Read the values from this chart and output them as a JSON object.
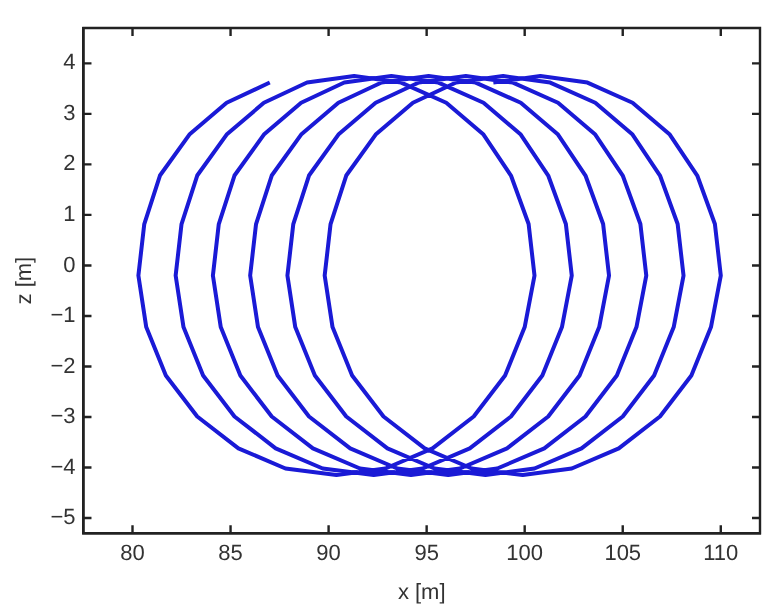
{
  "chart_data": {
    "type": "line",
    "xlabel": "x [m]",
    "ylabel": "z [m]",
    "marker": "none",
    "line_style": "solid",
    "grid": false,
    "legend": false,
    "xlim": [
      77.5,
      112
    ],
    "xticks": [
      80,
      85,
      90,
      95,
      100,
      105,
      110
    ],
    "ylim": [
      -5.3,
      4.7
    ],
    "yticks": [
      {
        "value": -5,
        "label": "−5"
      },
      {
        "value": -4,
        "label": "−4"
      },
      {
        "value": -3,
        "label": "−3"
      },
      {
        "value": -2,
        "label": "−2"
      },
      {
        "value": -1,
        "label": "−1"
      },
      0,
      1,
      2,
      3,
      4
    ],
    "series": [
      {
        "color": "#1a1ad6",
        "x": [
          87.0,
          84.8,
          82.9,
          81.4,
          80.6,
          80.3,
          80.7,
          81.7,
          83.3,
          85.4,
          87.8,
          90.4,
          92.9,
          95.3,
          97.4,
          99.0,
          100.0,
          100.5,
          100.2,
          99.3,
          97.9,
          96.0,
          93.7,
          91.3,
          88.9,
          86.7,
          84.8,
          83.3,
          82.5,
          82.2,
          82.6,
          83.6,
          85.2,
          87.3,
          89.7,
          92.3,
          94.8,
          97.2,
          99.3,
          100.9,
          101.9,
          102.4,
          102.1,
          101.2,
          99.8,
          97.9,
          95.6,
          93.2,
          90.8,
          88.6,
          86.7,
          85.2,
          84.4,
          84.1,
          84.5,
          85.5,
          87.1,
          89.2,
          91.6,
          94.2,
          96.7,
          99.1,
          101.2,
          102.8,
          103.8,
          104.3,
          104.0,
          103.1,
          101.7,
          99.8,
          97.5,
          95.1,
          92.7,
          90.5,
          88.6,
          87.1,
          86.3,
          86.0,
          86.4,
          87.4,
          89.0,
          91.1,
          93.5,
          96.1,
          98.6,
          101.0,
          103.1,
          104.7,
          105.7,
          106.2,
          105.9,
          105.0,
          103.6,
          101.7,
          99.4,
          97.0,
          94.6,
          92.4,
          90.5,
          89.0,
          88.2,
          87.9,
          88.3,
          89.3,
          90.9,
          93.0,
          95.4,
          98.0,
          100.5,
          102.9,
          105.0,
          106.6,
          107.6,
          108.1,
          107.8,
          106.9,
          105.5,
          103.6,
          101.3,
          98.9,
          96.5,
          94.3,
          92.4,
          90.9,
          90.1,
          89.8,
          90.2,
          91.2,
          92.8,
          94.9,
          97.3,
          99.9,
          102.4,
          104.8,
          106.9,
          108.5,
          109.5,
          110.0,
          109.7,
          108.8,
          107.4,
          105.5,
          103.2,
          100.8,
          98.4
        ],
        "values": [
          3.62,
          3.22,
          2.59,
          1.78,
          0.82,
          -0.2,
          -1.22,
          -2.18,
          -2.99,
          -3.62,
          -4.02,
          -4.15,
          -4.02,
          -3.62,
          -2.99,
          -2.18,
          -1.22,
          -0.2,
          0.82,
          1.78,
          2.59,
          3.22,
          3.62,
          3.75,
          3.62,
          3.22,
          2.59,
          1.78,
          0.82,
          -0.2,
          -1.22,
          -2.18,
          -2.99,
          -3.62,
          -4.02,
          -4.15,
          -4.02,
          -3.62,
          -2.99,
          -2.18,
          -1.22,
          -0.2,
          0.82,
          1.78,
          2.59,
          3.22,
          3.62,
          3.75,
          3.62,
          3.22,
          2.59,
          1.78,
          0.82,
          -0.2,
          -1.22,
          -2.18,
          -2.99,
          -3.62,
          -4.02,
          -4.15,
          -4.02,
          -3.62,
          -2.99,
          -2.18,
          -1.22,
          -0.2,
          0.82,
          1.78,
          2.59,
          3.22,
          3.62,
          3.75,
          3.62,
          3.22,
          2.59,
          1.78,
          0.82,
          -0.2,
          -1.22,
          -2.18,
          -2.99,
          -3.62,
          -4.02,
          -4.15,
          -4.02,
          -3.62,
          -2.99,
          -2.18,
          -1.22,
          -0.2,
          0.82,
          1.78,
          2.59,
          3.22,
          3.62,
          3.75,
          3.62,
          3.22,
          2.59,
          1.78,
          0.82,
          -0.2,
          -1.22,
          -2.18,
          -2.99,
          -3.62,
          -4.02,
          -4.15,
          -4.02,
          -3.62,
          -2.99,
          -2.18,
          -1.22,
          -0.2,
          0.82,
          1.78,
          2.59,
          3.22,
          3.62,
          3.75,
          3.62,
          3.22,
          2.59,
          1.78,
          0.82,
          -0.2,
          -1.22,
          -2.18,
          -2.99,
          -3.62,
          -4.02,
          -4.15,
          -4.02,
          -3.62,
          -2.99,
          -2.18,
          -1.22,
          -0.2,
          0.82,
          1.78,
          2.59,
          3.22,
          3.62,
          3.75,
          3.62
        ]
      }
    ]
  }
}
